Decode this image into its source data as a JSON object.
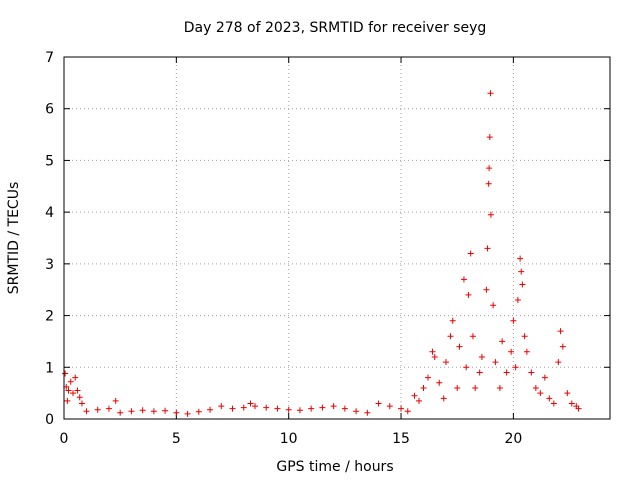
{
  "chart_data": {
    "type": "scatter",
    "title": "Day 278 of 2023, SRMTID for receiver seyg",
    "xlabel": "GPS time / hours",
    "ylabel": "SRMTID / TECUs",
    "xlim": [
      0,
      24.3
    ],
    "ylim": [
      0,
      7
    ],
    "xticks": [
      0,
      5,
      10,
      15,
      20
    ],
    "yticks": [
      0,
      1,
      2,
      3,
      4,
      5,
      6,
      7
    ],
    "grid": true,
    "marker": "+",
    "color": "#ee0000",
    "series": [
      {
        "name": "seyg",
        "points": [
          [
            0.05,
            0.88
          ],
          [
            0.1,
            0.62
          ],
          [
            0.15,
            0.35
          ],
          [
            0.2,
            0.55
          ],
          [
            0.3,
            0.72
          ],
          [
            0.4,
            0.5
          ],
          [
            0.5,
            0.8
          ],
          [
            0.6,
            0.55
          ],
          [
            0.7,
            0.42
          ],
          [
            0.8,
            0.3
          ],
          [
            1.0,
            0.15
          ],
          [
            1.5,
            0.18
          ],
          [
            2.0,
            0.2
          ],
          [
            2.3,
            0.35
          ],
          [
            2.5,
            0.12
          ],
          [
            3.0,
            0.15
          ],
          [
            3.5,
            0.17
          ],
          [
            4.0,
            0.15
          ],
          [
            4.5,
            0.16
          ],
          [
            5.0,
            0.12
          ],
          [
            5.5,
            0.1
          ],
          [
            6.0,
            0.14
          ],
          [
            6.5,
            0.18
          ],
          [
            7.0,
            0.25
          ],
          [
            7.5,
            0.2
          ],
          [
            8.0,
            0.22
          ],
          [
            8.3,
            0.3
          ],
          [
            8.5,
            0.25
          ],
          [
            9.0,
            0.22
          ],
          [
            9.5,
            0.2
          ],
          [
            10.0,
            0.18
          ],
          [
            10.5,
            0.17
          ],
          [
            11.0,
            0.2
          ],
          [
            11.5,
            0.22
          ],
          [
            12.0,
            0.25
          ],
          [
            12.5,
            0.2
          ],
          [
            13.0,
            0.15
          ],
          [
            13.5,
            0.12
          ],
          [
            14.0,
            0.3
          ],
          [
            14.5,
            0.25
          ],
          [
            15.0,
            0.2
          ],
          [
            15.3,
            0.15
          ],
          [
            15.6,
            0.45
          ],
          [
            15.8,
            0.35
          ],
          [
            16.0,
            0.6
          ],
          [
            16.2,
            0.8
          ],
          [
            16.4,
            1.3
          ],
          [
            16.5,
            1.2
          ],
          [
            16.7,
            0.7
          ],
          [
            16.9,
            0.4
          ],
          [
            17.0,
            1.1
          ],
          [
            17.2,
            1.6
          ],
          [
            17.3,
            1.9
          ],
          [
            17.5,
            0.6
          ],
          [
            17.6,
            1.4
          ],
          [
            17.8,
            2.7
          ],
          [
            17.9,
            1.0
          ],
          [
            18.0,
            2.4
          ],
          [
            18.1,
            3.2
          ],
          [
            18.2,
            1.6
          ],
          [
            18.3,
            0.6
          ],
          [
            18.5,
            0.9
          ],
          [
            18.6,
            1.2
          ],
          [
            18.8,
            2.5
          ],
          [
            18.85,
            3.3
          ],
          [
            18.9,
            4.55
          ],
          [
            18.92,
            4.85
          ],
          [
            18.95,
            5.45
          ],
          [
            18.98,
            6.3
          ],
          [
            19.0,
            3.95
          ],
          [
            19.1,
            2.2
          ],
          [
            19.2,
            1.1
          ],
          [
            19.4,
            0.6
          ],
          [
            19.5,
            1.5
          ],
          [
            19.7,
            0.9
          ],
          [
            19.9,
            1.3
          ],
          [
            20.0,
            1.9
          ],
          [
            20.1,
            1.0
          ],
          [
            20.2,
            2.3
          ],
          [
            20.3,
            3.1
          ],
          [
            20.35,
            2.85
          ],
          [
            20.4,
            2.6
          ],
          [
            20.5,
            1.6
          ],
          [
            20.6,
            1.3
          ],
          [
            20.8,
            0.9
          ],
          [
            21.0,
            0.6
          ],
          [
            21.2,
            0.5
          ],
          [
            21.4,
            0.8
          ],
          [
            21.6,
            0.4
          ],
          [
            21.8,
            0.3
          ],
          [
            22.0,
            1.1
          ],
          [
            22.1,
            1.7
          ],
          [
            22.2,
            1.4
          ],
          [
            22.4,
            0.5
          ],
          [
            22.6,
            0.3
          ],
          [
            22.8,
            0.25
          ],
          [
            22.9,
            0.2
          ]
        ]
      }
    ]
  }
}
